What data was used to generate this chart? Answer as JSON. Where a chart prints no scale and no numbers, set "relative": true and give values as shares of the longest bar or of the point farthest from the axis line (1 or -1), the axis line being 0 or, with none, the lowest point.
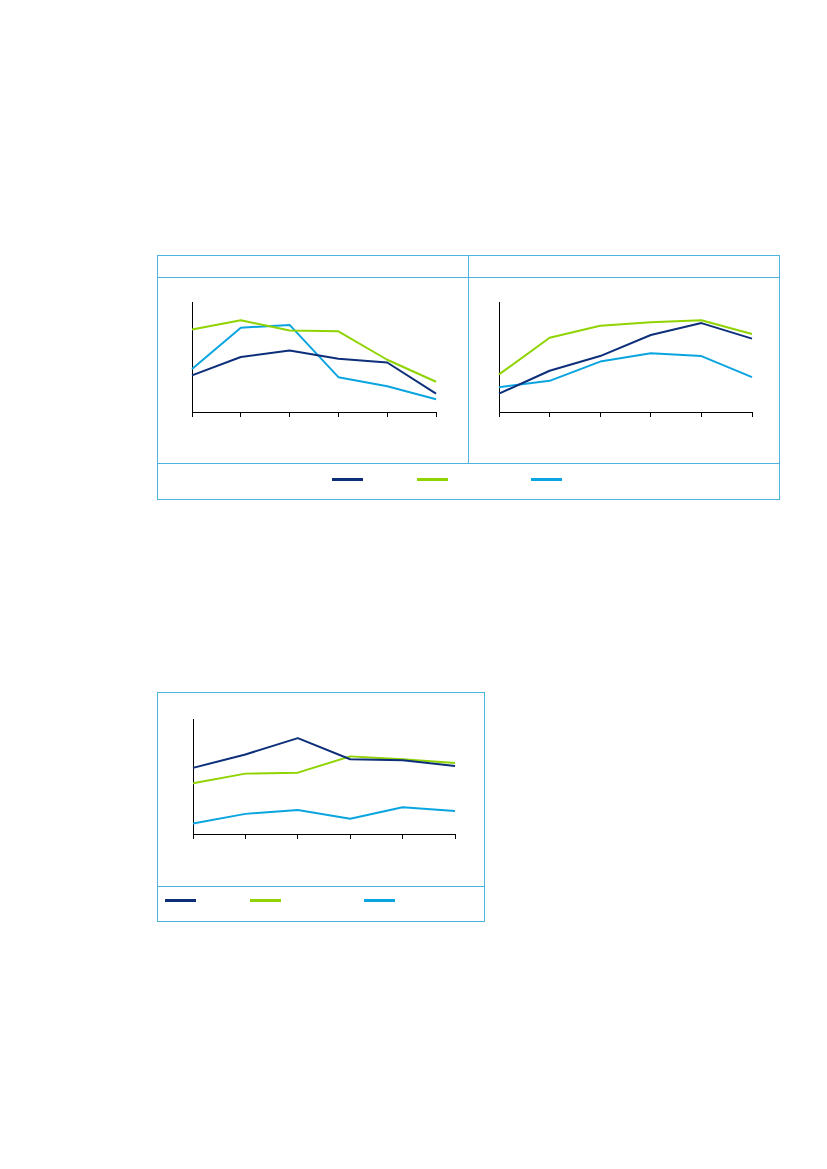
{
  "chart_data": [
    {
      "type": "line",
      "relative": true,
      "categories": [
        null,
        null,
        null,
        null,
        null,
        null
      ],
      "series": [
        {
          "color": "#0d2f7a",
          "values": [
            0.4,
            0.6,
            0.67,
            0.58,
            0.54,
            0.2
          ]
        },
        {
          "color": "#8fd400",
          "values": [
            0.9,
            1,
            0.89,
            0.88,
            0.57,
            0.33
          ]
        },
        {
          "color": "#0aa5e0",
          "values": [
            0.47,
            0.92,
            0.95,
            0.38,
            0.28,
            0.14
          ]
        }
      ]
    },
    {
      "type": "line",
      "relative": true,
      "categories": [
        null,
        null,
        null,
        null,
        null,
        null
      ],
      "series": [
        {
          "color": "#0d2f7a",
          "values": [
            0.2,
            0.45,
            0.61,
            0.84,
            0.97,
            0.8
          ]
        },
        {
          "color": "#8fd400",
          "values": [
            0.41,
            0.81,
            0.94,
            0.98,
            1,
            0.85
          ]
        },
        {
          "color": "#0aa5e0",
          "values": [
            0.27,
            0.34,
            0.55,
            0.64,
            0.61,
            0.38
          ]
        }
      ]
    },
    {
      "type": "line",
      "relative": true,
      "categories": [
        null,
        null,
        null,
        null,
        null,
        null
      ],
      "series": [
        {
          "color": "#0d2f7a",
          "values": [
            0.69,
            0.83,
            1,
            0.78,
            0.77,
            0.71
          ]
        },
        {
          "color": "#8fd400",
          "values": [
            0.53,
            0.63,
            0.64,
            0.81,
            0.78,
            0.74
          ]
        },
        {
          "color": "#0aa5e0",
          "values": [
            0.11,
            0.21,
            0.25,
            0.16,
            0.28,
            0.24
          ]
        }
      ]
    }
  ]
}
